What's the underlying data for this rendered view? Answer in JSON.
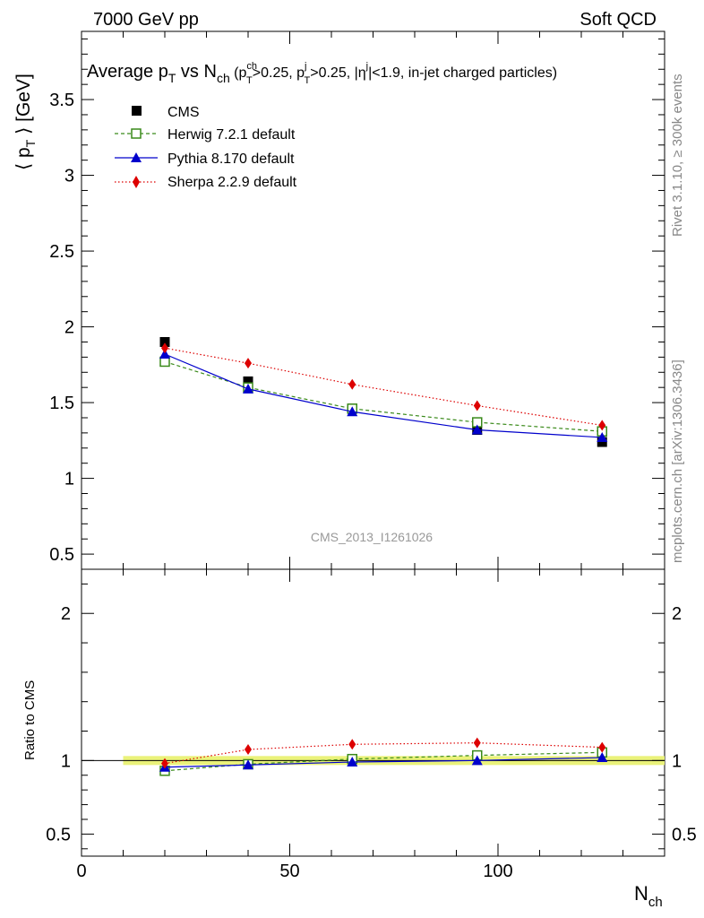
{
  "header": {
    "left": "7000 GeV pp",
    "right": "Soft QCD"
  },
  "side_text": {
    "rivet": "Rivet 3.1.10, ≥ 300k events",
    "mcplots": "mcplots.cern.ch [arXiv:1306.3436]"
  },
  "watermark": "CMS_2013_I1261026",
  "chart_data": {
    "type": "line",
    "title": {
      "main": "Average p",
      "main_sub": "T",
      "vs": " vs N",
      "vs_sub": "ch",
      "cut1": " (p",
      "cut1_sup": "ch",
      "cut1_sub": "T",
      "cut1_val": ">0.25, p",
      "cut2_sup": "j",
      "cut2_sub": "T",
      "cut2_val": ">0.25, |η",
      "cut3_sup": "j",
      "cut3_val": "|<1.9, in-jet charged particles)"
    },
    "ylabel": {
      "pre": "⟨ p",
      "sub": "T",
      "post": " ⟩ [GeV]"
    },
    "xlabel": {
      "main": "N",
      "sub": "ch"
    },
    "ratio_ylabel": "Ratio to CMS",
    "xlim": [
      0,
      140
    ],
    "ylim": [
      0.4,
      3.95
    ],
    "ratio_ylim": [
      0.35,
      2.3
    ],
    "x_ticks": [
      0,
      50,
      100
    ],
    "y_ticks": [
      0.5,
      1,
      1.5,
      2,
      2.5,
      3,
      3.5
    ],
    "y_tick_labels": [
      "0.5",
      "1",
      "1.5",
      "2",
      "2.5",
      "3",
      "3.5"
    ],
    "ratio_ticks": [
      0.5,
      1,
      2
    ],
    "ratio_tick_labels": [
      "0.5",
      "1",
      "2"
    ],
    "x": [
      20,
      40,
      65,
      95,
      125
    ],
    "series": [
      {
        "name": "CMS",
        "color": "#000000",
        "marker": "filled-square",
        "line": "none",
        "values": [
          1.9,
          1.64,
          1.46,
          1.32,
          1.24
        ]
      },
      {
        "name": "Herwig 7.2.1 default",
        "color": "#3a8a1a",
        "marker": "open-square",
        "line": "dashed",
        "values": [
          1.77,
          1.6,
          1.46,
          1.37,
          1.31
        ]
      },
      {
        "name": "Pythia 8.170 default",
        "color": "#0000cc",
        "marker": "filled-triangle",
        "line": "solid",
        "values": [
          1.82,
          1.59,
          1.44,
          1.32,
          1.27
        ]
      },
      {
        "name": "Sherpa 2.2.9 default",
        "color": "#dd0000",
        "marker": "filled-diamond",
        "line": "dotted",
        "values": [
          1.86,
          1.76,
          1.62,
          1.48,
          1.35
        ]
      }
    ],
    "ratio": {
      "x_range_band": [
        10,
        140
      ],
      "band_color": "#eaf27a",
      "series": [
        {
          "name": "Herwig 7.2.1 default",
          "values": [
            0.93,
            0.975,
            1.01,
            1.035,
            1.055
          ]
        },
        {
          "name": "Pythia 8.170 default",
          "values": [
            0.955,
            0.97,
            0.99,
            1.0,
            1.02
          ]
        },
        {
          "name": "Sherpa 2.2.9 default",
          "values": [
            0.98,
            1.075,
            1.11,
            1.12,
            1.09
          ]
        }
      ]
    }
  }
}
